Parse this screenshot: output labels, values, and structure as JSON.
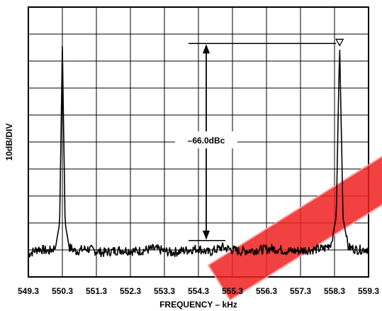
{
  "chart_data": {
    "type": "line",
    "xlabel": "FREQUENCY – kHz",
    "ylabel": "10dB/DIV",
    "x_ticks": [
      "549.3",
      "550.3",
      "551.3",
      "552.3",
      "553.3",
      "554.3",
      "555.3",
      "556.3",
      "557.3",
      "558.3",
      "559.3"
    ],
    "xlim": [
      549.3,
      559.3
    ],
    "y_divisions": 10,
    "y_units_per_div_db": 10,
    "ylim_div": [
      0,
      10
    ],
    "grid": true,
    "marker": "triangle-down",
    "annotation": "–66.0dBc",
    "series": [
      {
        "x": [
          549.3,
          549.6,
          549.9,
          550.1,
          550.22,
          550.3,
          550.38,
          550.5,
          550.7,
          551.0,
          551.5,
          552.0,
          552.5,
          553.0,
          553.5,
          554.0,
          554.3,
          554.6,
          555.0,
          555.5,
          556.0,
          556.5,
          557.0,
          557.5,
          558.0,
          558.2,
          558.35,
          558.45,
          558.55,
          558.7,
          559.0,
          559.3
        ],
        "y_div": [
          0.85,
          1.05,
          0.95,
          1.1,
          2.0,
          8.55,
          2.0,
          1.1,
          0.95,
          1.05,
          0.9,
          1.0,
          0.95,
          1.05,
          0.9,
          1.0,
          1.05,
          0.9,
          1.1,
          0.95,
          1.0,
          1.05,
          0.95,
          1.0,
          1.05,
          1.25,
          2.2,
          8.65,
          2.2,
          1.1,
          1.0,
          1.05
        ]
      }
    ],
    "reference_levels_div": {
      "carrier": 8.65,
      "spur": 1.35
    }
  }
}
